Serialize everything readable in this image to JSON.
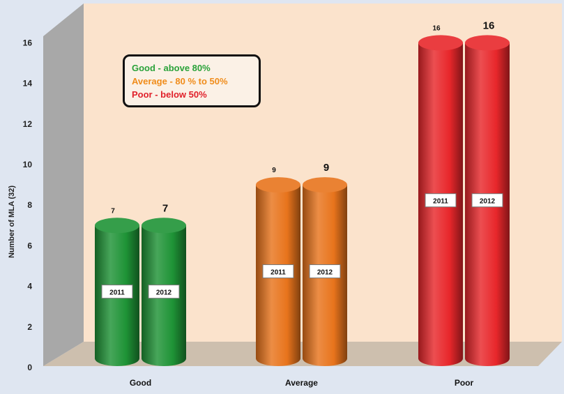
{
  "chart_data": {
    "type": "bar",
    "title": "",
    "xlabel": "",
    "ylabel": "Number of MLA (32)",
    "ylim": [
      0,
      16
    ],
    "yticks": [
      "0",
      "2",
      "4",
      "6",
      "8",
      "10",
      "12",
      "14",
      "16"
    ],
    "categories": [
      "Good",
      "Average",
      "Poor"
    ],
    "series": [
      {
        "name": "2011",
        "values": [
          7,
          9,
          16
        ],
        "value_labels": [
          "7",
          "9",
          "16"
        ]
      },
      {
        "name": "2012",
        "values": [
          7,
          9,
          16
        ],
        "value_labels": [
          "7",
          "9",
          "16"
        ]
      }
    ],
    "category_colors": [
      "#1e9336",
      "#e8741c",
      "#e8272b"
    ],
    "grid": false,
    "legend_placement": "top-left"
  },
  "legend": {
    "items": [
      {
        "text": "Good - above 80%",
        "color": "#2aa23a"
      },
      {
        "text": "Average - 80 % to 50%",
        "color": "#f08c1a"
      },
      {
        "text": "Poor  - below 50%",
        "color": "#e0202a"
      }
    ]
  }
}
